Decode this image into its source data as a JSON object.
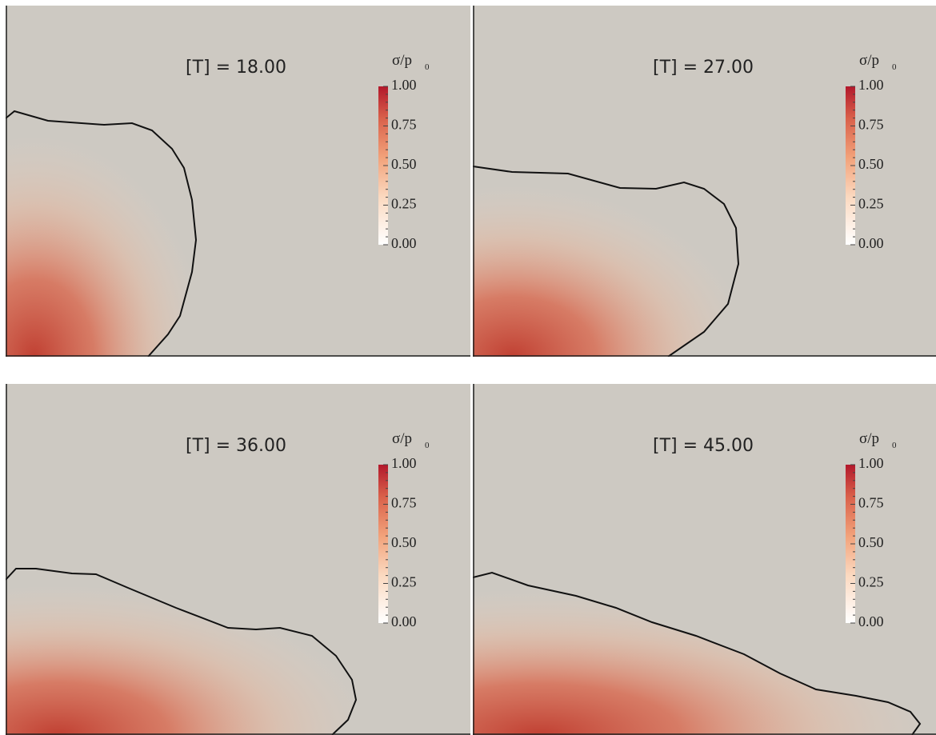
{
  "panels": [
    {
      "label": "[T] = 18.00"
    },
    {
      "label": "[T] = 27.00"
    },
    {
      "label": "[T] = 36.00"
    },
    {
      "label": "[T] = 45.00"
    }
  ],
  "colorbar": {
    "title": "σ/p",
    "title_subscript": "0",
    "ticks": [
      "1.00",
      "0.75",
      "0.50",
      "0.25",
      "0.00"
    ]
  }
}
